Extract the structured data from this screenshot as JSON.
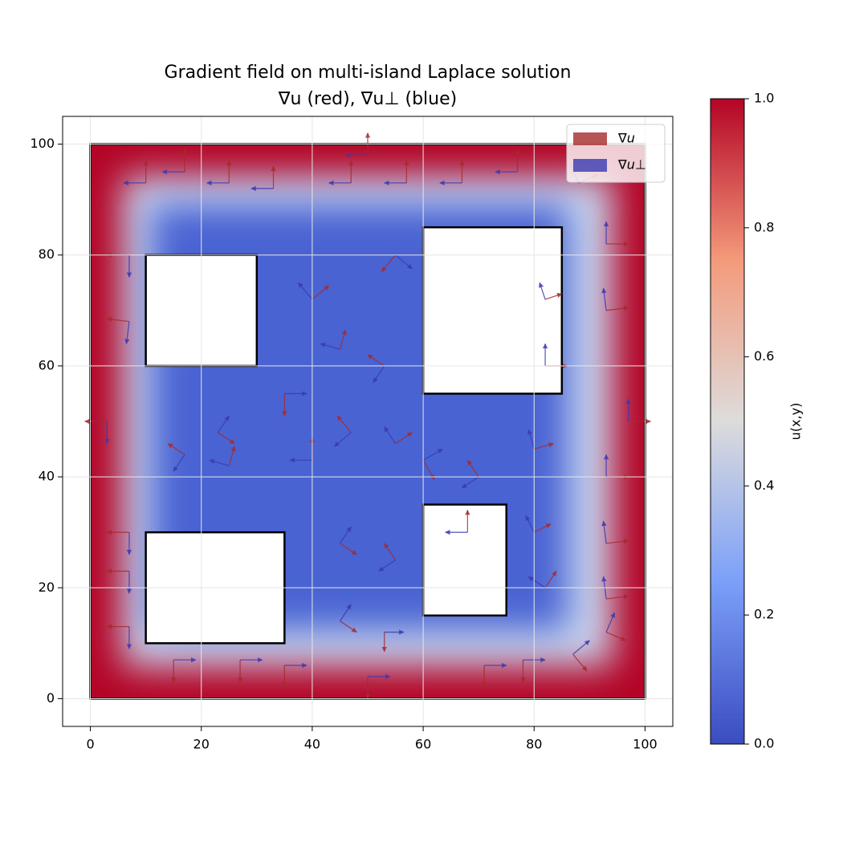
{
  "chart_data": {
    "type": "quiver",
    "title": "Gradient field on multi-island Laplace solution",
    "subtitle": "∇u (red), ∇u⊥ (blue)",
    "xlim": [
      -5,
      105
    ],
    "ylim": [
      -5,
      105
    ],
    "xticks": [
      0,
      20,
      40,
      60,
      80,
      100
    ],
    "yticks": [
      0,
      20,
      40,
      60,
      80,
      100
    ],
    "grid": true,
    "domain": {
      "x": [
        0,
        100
      ],
      "y": [
        0,
        100
      ]
    },
    "islands": {
      "x0": [
        10,
        60,
        10,
        60
      ],
      "y0": [
        60,
        55,
        10,
        15
      ],
      "x1": [
        30,
        85,
        35,
        75
      ],
      "y1": [
        80,
        85,
        30,
        35
      ]
    },
    "colorbar": {
      "label": "u(x,y)",
      "colormap": "coolwarm",
      "lim": [
        0,
        1
      ],
      "ticks": [
        {
          "value": 0,
          "label": "0.0"
        },
        {
          "value": 0.2,
          "label": "0.2"
        },
        {
          "value": 0.4,
          "label": "0.4"
        },
        {
          "value": 0.6,
          "label": "0.6"
        },
        {
          "value": 0.8,
          "label": "0.8"
        },
        {
          "value": 1,
          "label": "1.0"
        }
      ]
    },
    "legend": "upper right",
    "series": [
      {
        "name": "∇u",
        "color": "#a52a2a"
      },
      {
        "name": "∇u⊥",
        "color": "#3a3ab0"
      }
    ],
    "arrows": {
      "x": [
        7,
        7,
        3,
        7,
        7,
        7,
        10,
        17,
        25,
        33,
        47,
        50,
        57,
        67,
        77,
        88,
        93,
        93,
        97,
        93,
        93,
        93,
        93,
        15,
        27,
        35,
        50,
        71,
        78,
        87,
        17,
        25,
        40,
        47,
        55,
        60,
        70,
        80,
        45,
        53,
        40,
        55,
        23,
        35,
        45,
        55,
        82,
        82,
        45,
        53,
        68,
        80,
        82
      ],
      "y": [
        80,
        68,
        50,
        30,
        23,
        13,
        93,
        95,
        93,
        92,
        93,
        98,
        93,
        93,
        95,
        93,
        82,
        70,
        50,
        40,
        28,
        18,
        12,
        7,
        7,
        6,
        4,
        6,
        7,
        8,
        44,
        42,
        43,
        48,
        46,
        43,
        40,
        45,
        63,
        60,
        72,
        80,
        48,
        55,
        28,
        25,
        60,
        72,
        14,
        12,
        30,
        30,
        20
      ],
      "u": [
        -4,
        -4,
        -4,
        -4,
        -4,
        -4,
        0,
        0,
        0,
        0,
        0,
        0,
        0,
        0,
        0,
        3.5,
        4,
        4,
        4,
        4,
        4,
        4,
        3.5,
        0,
        0,
        0,
        0,
        0,
        0,
        2.5,
        -3,
        1,
        0,
        -2.5,
        3,
        2,
        -2,
        3.5,
        1,
        -3,
        3,
        -2.5,
        3,
        0,
        3,
        -2,
        4,
        3,
        3,
        0,
        0,
        3,
        2
      ],
      "v": [
        0,
        0.5,
        0,
        0,
        0,
        0,
        4,
        4,
        4,
        4,
        4,
        4,
        4,
        4,
        4,
        1.5,
        0,
        0.5,
        0,
        0,
        0.5,
        0.5,
        -1.5,
        -4,
        -4,
        -4,
        -4,
        -4,
        -4,
        -3,
        2,
        3.5,
        4,
        3,
        2,
        -3.5,
        3,
        1,
        3.5,
        2,
        2.5,
        -3,
        -2,
        -4,
        -2,
        3,
        0,
        1,
        -2,
        -3.5,
        4,
        1.5,
        3
      ]
    }
  }
}
